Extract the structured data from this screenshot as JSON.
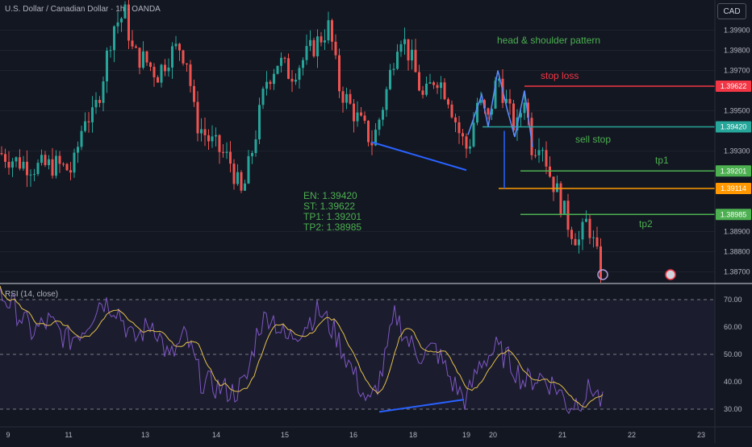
{
  "header": {
    "title": "U.S. Dollar / Canadian Dollar · 1h · OANDA",
    "currency": "CAD"
  },
  "colors": {
    "background": "#131722",
    "bull": "#26a69a",
    "bear": "#ef5350",
    "text": "#b2b5be",
    "annotation_green": "#4caf50",
    "annotation_red": "#f23645",
    "trendline_blue": "#2962ff",
    "pattern_blue": "#5b8cff",
    "orange": "#ff9800",
    "rsi_line": "#7e57c2",
    "rsi_ma": "#e4c14b"
  },
  "annotations": {
    "pattern": "head & shoulder pattern",
    "stop_loss": "stop loss",
    "sell_stop": "sell stop",
    "tp1": "tp1",
    "tp2": "tp2",
    "trade_info": [
      "EN: 1.39420",
      "ST: 1.39622",
      "TP1: 1.39201",
      "TP2: 1.38985"
    ]
  },
  "rsi": {
    "title": "RSI (14, close)",
    "ticks": [
      "70.00",
      "60.00",
      "50.00",
      "40.00",
      "30.00"
    ]
  },
  "chart_data": [
    {
      "type": "candlestick",
      "title": "U.S. Dollar / Canadian Dollar · 1h · OANDA",
      "ylim": [
        1.3865,
        1.4005
      ],
      "y_ticks": [
        "1.39900",
        "1.39800",
        "1.39700",
        "1.39500",
        "1.39300",
        "1.38900",
        "1.38800",
        "1.38700"
      ],
      "x_ticks": [
        "9",
        "11",
        "13",
        "14",
        "15",
        "16",
        "18",
        "19",
        "20",
        "21",
        "22",
        "23"
      ],
      "price_levels": [
        {
          "label": "1.39622",
          "value": 1.39622,
          "color": "#f23645",
          "name": "stop loss"
        },
        {
          "label": "1.39420",
          "value": 1.3942,
          "color": "#26a69a",
          "name": "sell stop"
        },
        {
          "label": "1.39201",
          "value": 1.39201,
          "color": "#4caf50",
          "name": "tp1"
        },
        {
          "label": "1.39114",
          "value": 1.39114,
          "color": "#ff9800",
          "name": ""
        },
        {
          "label": "1.38985",
          "value": 1.38985,
          "color": "#4caf50",
          "name": "tp2"
        }
      ],
      "trend_keypoints": [
        {
          "x": 0,
          "y": 1.3929
        },
        {
          "x": 20,
          "y": 1.3925
        },
        {
          "x": 45,
          "y": 1.3922
        },
        {
          "x": 70,
          "y": 1.3923
        },
        {
          "x": 90,
          "y": 1.392
        },
        {
          "x": 105,
          "y": 1.3948
        },
        {
          "x": 115,
          "y": 1.3946
        },
        {
          "x": 125,
          "y": 1.3962
        },
        {
          "x": 140,
          "y": 1.3992
        },
        {
          "x": 155,
          "y": 1.3998
        },
        {
          "x": 165,
          "y": 1.3978
        },
        {
          "x": 180,
          "y": 1.3975
        },
        {
          "x": 195,
          "y": 1.3968
        },
        {
          "x": 210,
          "y": 1.3978
        },
        {
          "x": 222,
          "y": 1.3982
        },
        {
          "x": 232,
          "y": 1.3975
        },
        {
          "x": 242,
          "y": 1.3945
        },
        {
          "x": 260,
          "y": 1.3935
        },
        {
          "x": 285,
          "y": 1.3925
        },
        {
          "x": 300,
          "y": 1.3907
        },
        {
          "x": 315,
          "y": 1.3935
        },
        {
          "x": 330,
          "y": 1.3965
        },
        {
          "x": 345,
          "y": 1.3975
        },
        {
          "x": 360,
          "y": 1.3968
        },
        {
          "x": 375,
          "y": 1.3975
        },
        {
          "x": 395,
          "y": 1.3985
        },
        {
          "x": 408,
          "y": 1.3992
        },
        {
          "x": 420,
          "y": 1.3962
        },
        {
          "x": 440,
          "y": 1.3948
        },
        {
          "x": 462,
          "y": 1.3934
        },
        {
          "x": 478,
          "y": 1.3958
        },
        {
          "x": 495,
          "y": 1.399
        },
        {
          "x": 510,
          "y": 1.3975
        },
        {
          "x": 525,
          "y": 1.3955
        },
        {
          "x": 540,
          "y": 1.3968
        },
        {
          "x": 555,
          "y": 1.3958
        },
        {
          "x": 570,
          "y": 1.3938
        },
        {
          "x": 580,
          "y": 1.393
        },
        {
          "x": 592,
          "y": 1.3955
        },
        {
          "x": 605,
          "y": 1.3945
        },
        {
          "x": 617,
          "y": 1.3968
        },
        {
          "x": 630,
          "y": 1.395
        },
        {
          "x": 640,
          "y": 1.394
        },
        {
          "x": 650,
          "y": 1.3958
        },
        {
          "x": 660,
          "y": 1.393
        },
        {
          "x": 670,
          "y": 1.3938
        },
        {
          "x": 680,
          "y": 1.392
        },
        {
          "x": 692,
          "y": 1.3908
        },
        {
          "x": 705,
          "y": 1.3893
        },
        {
          "x": 718,
          "y": 1.3885
        },
        {
          "x": 728,
          "y": 1.3896
        },
        {
          "x": 738,
          "y": 1.388
        },
        {
          "x": 746,
          "y": 1.3868
        }
      ],
      "rsi_keypoints": [
        {
          "x": 0,
          "y": 72
        },
        {
          "x": 15,
          "y": 68
        },
        {
          "x": 40,
          "y": 58
        },
        {
          "x": 60,
          "y": 62
        },
        {
          "x": 85,
          "y": 55
        },
        {
          "x": 105,
          "y": 60
        },
        {
          "x": 125,
          "y": 70
        },
        {
          "x": 145,
          "y": 67
        },
        {
          "x": 165,
          "y": 55
        },
        {
          "x": 190,
          "y": 62
        },
        {
          "x": 210,
          "y": 48
        },
        {
          "x": 230,
          "y": 57
        },
        {
          "x": 250,
          "y": 40
        },
        {
          "x": 270,
          "y": 38
        },
        {
          "x": 290,
          "y": 36
        },
        {
          "x": 305,
          "y": 40
        },
        {
          "x": 320,
          "y": 60
        },
        {
          "x": 335,
          "y": 65
        },
        {
          "x": 355,
          "y": 55
        },
        {
          "x": 375,
          "y": 60
        },
        {
          "x": 395,
          "y": 66
        },
        {
          "x": 415,
          "y": 58
        },
        {
          "x": 440,
          "y": 42
        },
        {
          "x": 458,
          "y": 31
        },
        {
          "x": 475,
          "y": 45
        },
        {
          "x": 490,
          "y": 65
        },
        {
          "x": 505,
          "y": 55
        },
        {
          "x": 520,
          "y": 50
        },
        {
          "x": 540,
          "y": 52
        },
        {
          "x": 560,
          "y": 40
        },
        {
          "x": 578,
          "y": 33
        },
        {
          "x": 595,
          "y": 47
        },
        {
          "x": 615,
          "y": 52
        },
        {
          "x": 630,
          "y": 48
        },
        {
          "x": 650,
          "y": 40
        },
        {
          "x": 670,
          "y": 42
        },
        {
          "x": 690,
          "y": 38
        },
        {
          "x": 705,
          "y": 31
        },
        {
          "x": 720,
          "y": 34
        },
        {
          "x": 735,
          "y": 38
        },
        {
          "x": 748,
          "y": 31
        }
      ]
    }
  ]
}
